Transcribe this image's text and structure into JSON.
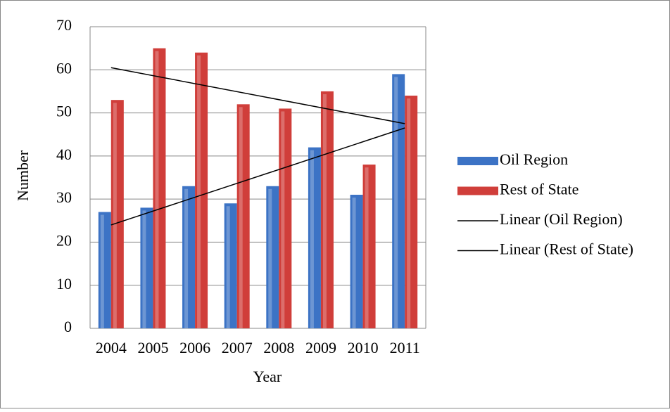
{
  "chart_data": {
    "type": "bar",
    "categories": [
      "2004",
      "2005",
      "2006",
      "2007",
      "2008",
      "2009",
      "2010",
      "2011"
    ],
    "series": [
      {
        "name": "Oil Region",
        "color": "#3c73c5",
        "values": [
          27,
          28,
          33,
          29,
          33,
          42,
          31,
          59
        ]
      },
      {
        "name": "Rest of State",
        "color": "#d03e3a",
        "values": [
          53,
          65,
          64,
          52,
          51,
          55,
          38,
          54
        ]
      }
    ],
    "trendlines": [
      {
        "name": "Linear (Oil Region)",
        "color": "#000000"
      },
      {
        "name": "Linear (Rest of State)",
        "color": "#000000"
      }
    ],
    "x_label": "Year",
    "y_label": "Number",
    "ylim": [
      0,
      70
    ],
    "yticks": [
      0,
      10,
      20,
      30,
      40,
      50,
      60,
      70
    ],
    "grid": true,
    "legend": "right"
  }
}
